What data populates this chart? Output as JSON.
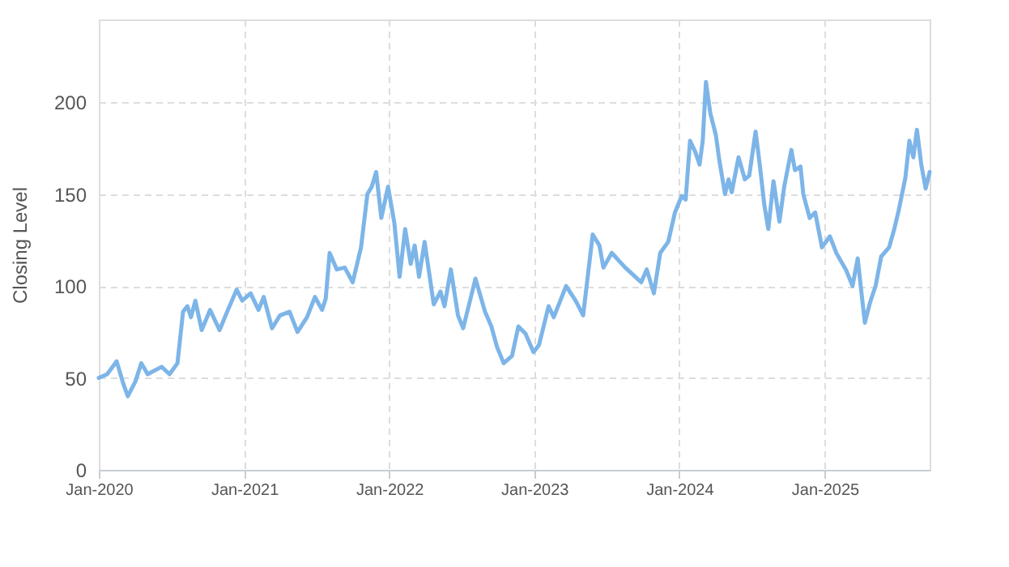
{
  "chart_data": {
    "type": "line",
    "ylabel": "Closing Level",
    "xlim": [
      "2020-01-01",
      "2025-09-22"
    ],
    "ylim": [
      0,
      245
    ],
    "xticks": [
      {
        "value": "2020-01-01",
        "label": "Jan-2020"
      },
      {
        "value": "2021-01-01",
        "label": "Jan-2021"
      },
      {
        "value": "2022-01-01",
        "label": "Jan-2022"
      },
      {
        "value": "2023-01-01",
        "label": "Jan-2023"
      },
      {
        "value": "2024-01-01",
        "label": "Jan-2024"
      },
      {
        "value": "2025-01-01",
        "label": "Jan-2025"
      }
    ],
    "yticks": [
      0,
      50,
      100,
      150,
      200
    ],
    "grid": true,
    "line_style": "solid",
    "marker": "none",
    "series": [
      {
        "color": "#7db5e8",
        "x": [
          "2020-01-01",
          "2020-01-22",
          "2020-02-15",
          "2020-03-01",
          "2020-03-14",
          "2020-04-02",
          "2020-04-17",
          "2020-05-03",
          "2020-06-07",
          "2020-06-27",
          "2020-07-17",
          "2020-07-31",
          "2020-08-11",
          "2020-08-20",
          "2020-08-31",
          "2020-09-16",
          "2020-10-07",
          "2020-10-31",
          "2020-11-19",
          "2020-12-13",
          "2020-12-27",
          "2021-01-17",
          "2021-02-06",
          "2021-02-19",
          "2021-03-12",
          "2021-04-01",
          "2021-04-25",
          "2021-05-15",
          "2021-06-08",
          "2021-06-28",
          "2021-07-16",
          "2021-07-25",
          "2021-08-04",
          "2021-08-22",
          "2021-09-11",
          "2021-10-01",
          "2021-10-22",
          "2021-11-07",
          "2021-11-18",
          "2021-11-29",
          "2021-12-12",
          "2021-12-29",
          "2022-01-14",
          "2022-01-27",
          "2022-02-10",
          "2022-02-24",
          "2022-03-06",
          "2022-03-17",
          "2022-03-31",
          "2022-04-23",
          "2022-05-10",
          "2022-05-20",
          "2022-06-05",
          "2022-06-23",
          "2022-07-06",
          "2022-08-06",
          "2022-08-30",
          "2022-09-15",
          "2022-09-29",
          "2022-10-16",
          "2022-11-06",
          "2022-11-22",
          "2022-12-10",
          "2022-12-30",
          "2023-01-13",
          "2023-02-06",
          "2023-02-19",
          "2023-03-22",
          "2023-04-15",
          "2023-05-04",
          "2023-05-28",
          "2023-06-14",
          "2023-06-24",
          "2023-07-15",
          "2023-08-18",
          "2023-09-07",
          "2023-09-27",
          "2023-10-11",
          "2023-10-29",
          "2023-11-14",
          "2023-12-04",
          "2023-12-21",
          "2024-01-07",
          "2024-01-17",
          "2024-01-28",
          "2024-02-10",
          "2024-02-21",
          "2024-02-29",
          "2024-03-08",
          "2024-03-19",
          "2024-04-02",
          "2024-04-11",
          "2024-04-25",
          "2024-05-04",
          "2024-05-12",
          "2024-05-29",
          "2024-06-14",
          "2024-06-25",
          "2024-07-11",
          "2024-07-22",
          "2024-08-02",
          "2024-08-12",
          "2024-08-25",
          "2024-09-09",
          "2024-09-21",
          "2024-10-09",
          "2024-10-18",
          "2024-11-01",
          "2024-11-08",
          "2024-11-24",
          "2024-12-08",
          "2024-12-25",
          "2025-01-14",
          "2025-01-30",
          "2025-02-23",
          "2025-03-12",
          "2025-03-25",
          "2025-04-02",
          "2025-04-12",
          "2025-04-25",
          "2025-05-09",
          "2025-05-23",
          "2025-06-12",
          "2025-06-25",
          "2025-07-06",
          "2025-07-23",
          "2025-08-02",
          "2025-08-12",
          "2025-08-21",
          "2025-09-01",
          "2025-09-12",
          "2025-09-22"
        ],
        "values": [
          50,
          52,
          59,
          48,
          40,
          48,
          58,
          52,
          56,
          52,
          58,
          86,
          89,
          83,
          92,
          76,
          87,
          76,
          86,
          98,
          92,
          96,
          87,
          94,
          77,
          84,
          86,
          75,
          83,
          94,
          87,
          93,
          118,
          109,
          110,
          102,
          121,
          150,
          154,
          162,
          137,
          154,
          134,
          105,
          131,
          112,
          122,
          105,
          124,
          90,
          97,
          89,
          109,
          84,
          77,
          104,
          86,
          78,
          67,
          58,
          62,
          78,
          74,
          64,
          68,
          89,
          83,
          100,
          92,
          84,
          128,
          122,
          110,
          118,
          110,
          106,
          102,
          109,
          96,
          118,
          124,
          140,
          149,
          147,
          179,
          173,
          166,
          179,
          211,
          194,
          182,
          168,
          150,
          158,
          151,
          170,
          158,
          160,
          184,
          165,
          144,
          131,
          157,
          135,
          154,
          174,
          163,
          165,
          150,
          137,
          140,
          121,
          127,
          118,
          109,
          100,
          115,
          99,
          80,
          91,
          100,
          116,
          121,
          131,
          141,
          159,
          179,
          170,
          185,
          166,
          153,
          162
        ]
      }
    ]
  }
}
